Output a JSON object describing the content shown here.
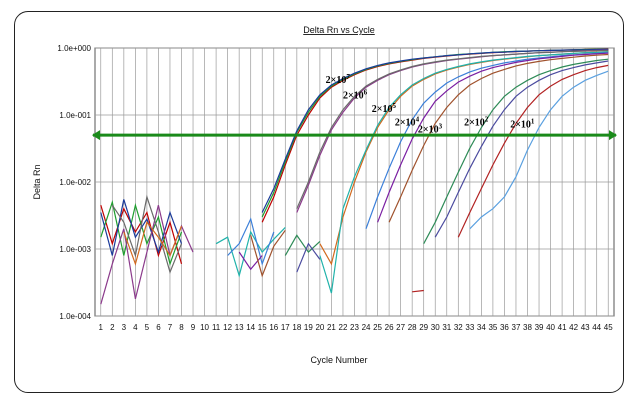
{
  "chart_data": {
    "type": "line",
    "title": "Delta Rn vs Cycle",
    "xlabel": "Cycle Number",
    "ylabel": "Delta Rn",
    "yscale": "log",
    "xlim": [
      1,
      45
    ],
    "ylim": [
      0.0001,
      1
    ],
    "x_ticks": [
      1,
      2,
      3,
      4,
      5,
      6,
      7,
      8,
      9,
      10,
      11,
      12,
      13,
      14,
      15,
      16,
      17,
      18,
      19,
      20,
      21,
      22,
      23,
      24,
      25,
      26,
      27,
      28,
      29,
      30,
      31,
      32,
      33,
      34,
      35,
      36,
      37,
      38,
      39,
      40,
      41,
      42,
      43,
      44,
      45
    ],
    "y_ticks": [
      {
        "value": 1,
        "label": "1.0e+000"
      },
      {
        "value": 0.1,
        "label": "1.0e-001"
      },
      {
        "value": 0.01,
        "label": "1.0e-002"
      },
      {
        "value": 0.001,
        "label": "1.0e-003"
      },
      {
        "value": 0.0001,
        "label": "1.0e-004"
      }
    ],
    "grid": true,
    "threshold": {
      "value": 0.05,
      "color": "#1a8a1a"
    },
    "annotations": [
      {
        "base": "2×10",
        "exp": "7",
        "x": 20.5,
        "y": 0.3
      },
      {
        "base": "2×10",
        "exp": "6",
        "x": 22.0,
        "y": 0.175
      },
      {
        "base": "2×10",
        "exp": "5",
        "x": 24.5,
        "y": 0.11
      },
      {
        "base": "2×10",
        "exp": "4",
        "x": 26.5,
        "y": 0.07
      },
      {
        "base": "2×10",
        "exp": "3",
        "x": 28.5,
        "y": 0.055
      },
      {
        "base": "2×10",
        "exp": "2",
        "x": 32.5,
        "y": 0.07
      },
      {
        "base": "2×10",
        "exp": "1",
        "x": 36.5,
        "y": 0.065
      }
    ],
    "series_colors": [
      "#c00000",
      "#1f9e2f",
      "#1a3a9a",
      "#8b3a8b",
      "#6a6a6a",
      "#d2691e",
      "#20b2aa",
      "#3b7fd9",
      "#7a1fa2",
      "#a0522d",
      "#2e8b57",
      "#4b4b9f",
      "#b22222",
      "#5aa0e0"
    ],
    "series": [
      {
        "x": [
          15,
          16,
          17,
          18,
          19,
          20,
          21,
          22,
          23,
          24,
          25,
          26,
          27,
          28,
          29,
          30,
          31,
          32,
          33,
          34,
          35,
          36,
          37,
          38,
          39,
          40,
          41,
          42,
          43,
          44,
          45
        ],
        "y": [
          0.0025,
          0.006,
          0.018,
          0.05,
          0.1,
          0.18,
          0.26,
          0.33,
          0.4,
          0.47,
          0.53,
          0.58,
          0.62,
          0.66,
          0.7,
          0.73,
          0.76,
          0.79,
          0.81,
          0.83,
          0.85,
          0.87,
          0.88,
          0.9,
          0.91,
          0.92,
          0.93,
          0.94,
          0.95,
          0.96,
          0.97
        ]
      },
      {
        "x": [
          15,
          16,
          17,
          18,
          19,
          20,
          21,
          22,
          23,
          24,
          25,
          26,
          27,
          28,
          29,
          30,
          31,
          32,
          33,
          34,
          35,
          36,
          37,
          38,
          39,
          40,
          41,
          42,
          43,
          44,
          45
        ],
        "y": [
          0.003,
          0.007,
          0.02,
          0.055,
          0.11,
          0.19,
          0.27,
          0.34,
          0.41,
          0.48,
          0.54,
          0.59,
          0.63,
          0.67,
          0.71,
          0.74,
          0.77,
          0.8,
          0.82,
          0.84,
          0.86,
          0.88,
          0.89,
          0.9,
          0.91,
          0.92,
          0.93,
          0.94,
          0.95,
          0.96,
          0.96
        ]
      },
      {
        "x": [
          15,
          16,
          17,
          18,
          19,
          20,
          21,
          22,
          23,
          24,
          25,
          26,
          27,
          28,
          29,
          30,
          31,
          32,
          33,
          34,
          35,
          36,
          37,
          38,
          39,
          40,
          41,
          42,
          43,
          44,
          45
        ],
        "y": [
          0.0035,
          0.008,
          0.022,
          0.058,
          0.12,
          0.2,
          0.28,
          0.35,
          0.42,
          0.49,
          0.55,
          0.6,
          0.64,
          0.68,
          0.71,
          0.74,
          0.77,
          0.79,
          0.82,
          0.84,
          0.86,
          0.87,
          0.89,
          0.9,
          0.91,
          0.92,
          0.93,
          0.94,
          0.94,
          0.95,
          0.96
        ]
      },
      {
        "x": [
          18,
          19,
          20,
          21,
          22,
          23,
          24,
          25,
          26,
          27,
          28,
          29,
          30,
          31,
          32,
          33,
          34,
          35,
          36,
          37,
          38,
          39,
          40,
          41,
          42,
          43,
          44,
          45
        ],
        "y": [
          0.0035,
          0.009,
          0.025,
          0.06,
          0.11,
          0.18,
          0.26,
          0.33,
          0.4,
          0.46,
          0.52,
          0.57,
          0.61,
          0.65,
          0.68,
          0.71,
          0.74,
          0.77,
          0.79,
          0.81,
          0.83,
          0.85,
          0.87,
          0.88,
          0.9,
          0.91,
          0.92,
          0.93
        ]
      },
      {
        "x": [
          18,
          19,
          20,
          21,
          22,
          23,
          24,
          25,
          26,
          27,
          28,
          29,
          30,
          31,
          32,
          33,
          34,
          35,
          36,
          37,
          38,
          39,
          40,
          41,
          42,
          43,
          44,
          45
        ],
        "y": [
          0.004,
          0.01,
          0.028,
          0.065,
          0.12,
          0.19,
          0.27,
          0.34,
          0.41,
          0.47,
          0.53,
          0.58,
          0.62,
          0.66,
          0.69,
          0.72,
          0.75,
          0.77,
          0.79,
          0.81,
          0.83,
          0.85,
          0.86,
          0.88,
          0.89,
          0.9,
          0.91,
          0.92
        ]
      },
      {
        "x": [
          20,
          21,
          22,
          23,
          24,
          25,
          26,
          27,
          28,
          29,
          30,
          31,
          32,
          33,
          34,
          35,
          36,
          37,
          38,
          39,
          40,
          41,
          42,
          43,
          44,
          45
        ],
        "y": [
          0.0012,
          0.0006,
          0.003,
          0.01,
          0.028,
          0.065,
          0.12,
          0.19,
          0.27,
          0.34,
          0.41,
          0.47,
          0.52,
          0.57,
          0.61,
          0.65,
          0.68,
          0.71,
          0.74,
          0.77,
          0.79,
          0.81,
          0.83,
          0.85,
          0.87,
          0.88
        ]
      },
      {
        "x": [
          20,
          21,
          22,
          23,
          24,
          25,
          26,
          27,
          28,
          29,
          30,
          31,
          32,
          33,
          34,
          35,
          36,
          37,
          38,
          39,
          40,
          41,
          42,
          43,
          44,
          45
        ],
        "y": [
          0.0008,
          0.00022,
          0.004,
          0.012,
          0.03,
          0.07,
          0.13,
          0.2,
          0.28,
          0.35,
          0.42,
          0.48,
          0.53,
          0.58,
          0.62,
          0.66,
          0.69,
          0.72,
          0.75,
          0.77,
          0.79,
          0.81,
          0.83,
          0.85,
          0.86,
          0.88
        ]
      },
      {
        "x": [
          24,
          25,
          26,
          27,
          28,
          29,
          30,
          31,
          32,
          33,
          34,
          35,
          36,
          37,
          38,
          39,
          40,
          41,
          42,
          43,
          44,
          45
        ],
        "y": [
          0.002,
          0.006,
          0.016,
          0.04,
          0.085,
          0.15,
          0.22,
          0.3,
          0.37,
          0.44,
          0.5,
          0.55,
          0.6,
          0.64,
          0.68,
          0.71,
          0.74,
          0.77,
          0.79,
          0.81,
          0.83,
          0.85
        ]
      },
      {
        "x": [
          25,
          26,
          27,
          28,
          29,
          30,
          31,
          32,
          33,
          34,
          35,
          36,
          37,
          38,
          39,
          40,
          41,
          42,
          43,
          44,
          45
        ],
        "y": [
          0.0025,
          0.007,
          0.018,
          0.044,
          0.09,
          0.16,
          0.23,
          0.31,
          0.38,
          0.45,
          0.51,
          0.56,
          0.61,
          0.65,
          0.69,
          0.72,
          0.75,
          0.78,
          0.8,
          0.82,
          0.84
        ]
      },
      {
        "x": [
          26,
          27,
          28,
          29,
          30,
          31,
          32,
          33,
          34,
          35,
          36,
          37,
          38,
          39,
          40,
          41,
          42,
          43,
          44,
          45
        ],
        "y": [
          0.0025,
          0.006,
          0.015,
          0.035,
          0.075,
          0.13,
          0.2,
          0.28,
          0.35,
          0.42,
          0.48,
          0.54,
          0.59,
          0.63,
          0.67,
          0.7,
          0.73,
          0.76,
          0.78,
          0.8
        ]
      },
      {
        "x": [
          29,
          30,
          31,
          32,
          33,
          34,
          35,
          36,
          37,
          38,
          39,
          40,
          41,
          42,
          43,
          44,
          45
        ],
        "y": [
          0.0012,
          0.0025,
          0.006,
          0.014,
          0.032,
          0.065,
          0.12,
          0.19,
          0.26,
          0.33,
          0.4,
          0.46,
          0.52,
          0.57,
          0.61,
          0.65,
          0.68
        ]
      },
      {
        "x": [
          30,
          31,
          32,
          33,
          34,
          35,
          36,
          37,
          38,
          39,
          40,
          41,
          42,
          43,
          44,
          45
        ],
        "y": [
          0.0015,
          0.003,
          0.007,
          0.016,
          0.034,
          0.068,
          0.12,
          0.19,
          0.26,
          0.33,
          0.4,
          0.46,
          0.51,
          0.56,
          0.6,
          0.64
        ]
      },
      {
        "x": [
          32,
          33,
          34,
          35,
          36,
          37,
          38,
          39,
          40,
          41,
          42,
          43,
          44,
          45
        ],
        "y": [
          0.0015,
          0.0035,
          0.008,
          0.018,
          0.038,
          0.075,
          0.13,
          0.2,
          0.27,
          0.34,
          0.4,
          0.46,
          0.51,
          0.55
        ]
      },
      {
        "x": [
          33,
          34,
          35,
          36,
          37,
          38,
          39,
          40,
          41,
          42,
          43,
          44,
          45
        ],
        "y": [
          0.002,
          0.003,
          0.004,
          0.006,
          0.012,
          0.03,
          0.065,
          0.12,
          0.19,
          0.26,
          0.33,
          0.39,
          0.45
        ]
      },
      {
        "x": [
          1,
          2,
          3,
          4,
          5,
          6,
          7,
          8
        ],
        "y": [
          0.0045,
          0.0012,
          0.004,
          0.0018,
          0.0035,
          0.0008,
          0.0025,
          0.0006
        ]
      },
      {
        "x": [
          1,
          2,
          3,
          4,
          5,
          6,
          7,
          8
        ],
        "y": [
          0.0015,
          0.005,
          0.0008,
          0.0045,
          0.0012,
          0.003,
          0.0006,
          0.0018
        ]
      },
      {
        "x": [
          1,
          2,
          3,
          4,
          5,
          6,
          7,
          8
        ],
        "y": [
          0.0035,
          0.0008,
          0.0055,
          0.0015,
          0.0028,
          0.0009,
          0.0035,
          0.0012
        ]
      },
      {
        "x": [
          1,
          2,
          3,
          4,
          5,
          6,
          7,
          8,
          9
        ],
        "y": [
          0.00015,
          0.0006,
          0.002,
          0.00018,
          0.0009,
          0.0045,
          0.0008,
          0.0022,
          0.0009
        ]
      },
      {
        "x": [
          2,
          3,
          4,
          5,
          6,
          7,
          8
        ],
        "y": [
          0.0045,
          0.0025,
          0.0008,
          0.006,
          0.0018,
          0.00045,
          0.0012
        ]
      },
      {
        "x": [
          3,
          4,
          5,
          6,
          7,
          8
        ],
        "y": [
          0.0018,
          0.0006,
          0.0025,
          0.0015,
          0.0008,
          0.0022
        ]
      },
      {
        "x": [
          11,
          12,
          13,
          14,
          15,
          16,
          17
        ],
        "y": [
          0.0012,
          0.0015,
          0.0004,
          0.0018,
          0.0009,
          0.0014,
          0.0021
        ]
      },
      {
        "x": [
          12,
          13,
          14,
          15,
          16
        ],
        "y": [
          0.0008,
          0.0012,
          0.0028,
          0.0006,
          0.0018
        ]
      },
      {
        "x": [
          13,
          14,
          15
        ],
        "y": [
          0.0009,
          0.0005,
          0.0008
        ]
      },
      {
        "x": [
          14,
          15,
          16,
          17
        ],
        "y": [
          0.0016,
          0.0004,
          0.0011,
          0.0019
        ]
      },
      {
        "x": [
          17,
          18,
          19,
          20
        ],
        "y": [
          0.0008,
          0.0016,
          0.0009,
          0.0013
        ]
      },
      {
        "x": [
          18,
          19,
          20
        ],
        "y": [
          0.00045,
          0.0012,
          0.0007
        ]
      },
      {
        "x": [
          28,
          29
        ],
        "y": [
          0.00023,
          0.00024
        ]
      }
    ]
  }
}
